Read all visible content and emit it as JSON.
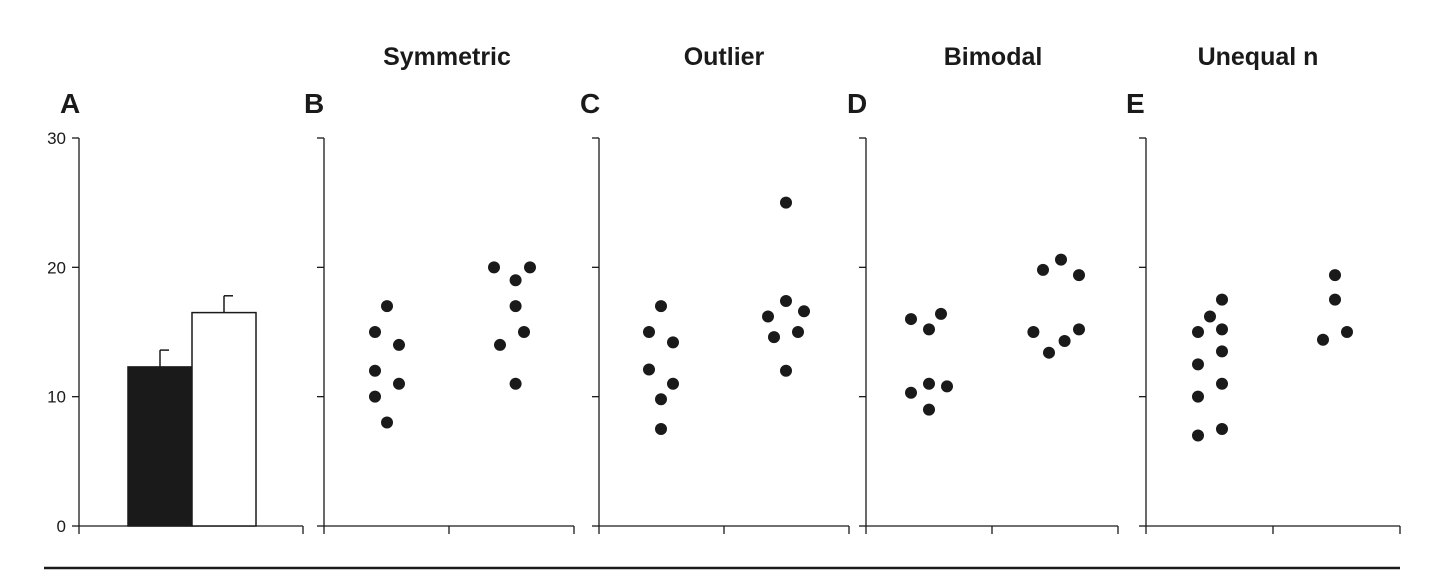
{
  "colors": {
    "ink": "#1a1a1a",
    "bar_filled": "#1a1a1a",
    "bar_open": "#ffffff"
  },
  "chart_data": [
    {
      "panel": "A",
      "type": "bar",
      "title": "",
      "ylim": [
        0,
        30
      ],
      "yticks": [
        "0",
        "10",
        "20",
        "30"
      ],
      "bars": [
        {
          "value": 12.3,
          "error": 1.3,
          "fill": "#1a1a1a"
        },
        {
          "value": 16.5,
          "error": 1.3,
          "fill": "#ffffff"
        }
      ]
    },
    {
      "panel": "B",
      "type": "scatter",
      "title": "Symmetric",
      "ylim": [
        0,
        30
      ],
      "groups": [
        {
          "points": [
            [
              0,
              17
            ],
            [
              -1,
              15
            ],
            [
              1,
              14
            ],
            [
              -1,
              12
            ],
            [
              1,
              11
            ],
            [
              -1,
              10
            ],
            [
              0,
              8
            ]
          ]
        },
        {
          "points": [
            [
              -1.5,
              20
            ],
            [
              1.5,
              20
            ],
            [
              0.3,
              19
            ],
            [
              0.3,
              17
            ],
            [
              1,
              15
            ],
            [
              -1,
              14
            ],
            [
              0.3,
              11
            ]
          ]
        }
      ]
    },
    {
      "panel": "C",
      "type": "scatter",
      "title": "Outlier",
      "ylim": [
        0,
        30
      ],
      "groups": [
        {
          "points": [
            [
              0,
              17
            ],
            [
              -1,
              15
            ],
            [
              1,
              14.2
            ],
            [
              -1,
              12.1
            ],
            [
              1,
              11
            ],
            [
              0,
              9.8
            ],
            [
              0,
              7.5
            ]
          ]
        },
        {
          "points": [
            [
              0,
              25
            ],
            [
              0,
              17.4
            ],
            [
              -1.5,
              16.2
            ],
            [
              1.5,
              16.6
            ],
            [
              -1,
              14.6
            ],
            [
              1,
              15
            ],
            [
              0,
              12
            ]
          ]
        }
      ]
    },
    {
      "panel": "D",
      "type": "scatter",
      "title": "Bimodal",
      "ylim": [
        0,
        30
      ],
      "groups": [
        {
          "points": [
            [
              -1.5,
              16
            ],
            [
              0,
              15.2
            ],
            [
              1,
              16.4
            ],
            [
              -1.5,
              10.3
            ],
            [
              0,
              11
            ],
            [
              1.5,
              10.8
            ],
            [
              0,
              9
            ]
          ]
        },
        {
          "points": [
            [
              -1,
              19.8
            ],
            [
              0.5,
              20.6
            ],
            [
              2,
              19.4
            ],
            [
              -1.8,
              15
            ],
            [
              2,
              15.2
            ],
            [
              -0.5,
              13.4
            ],
            [
              0.8,
              14.3
            ]
          ]
        }
      ]
    },
    {
      "panel": "E",
      "type": "scatter",
      "title": "Unequal n",
      "ylim": [
        0,
        30
      ],
      "groups": [
        {
          "points": [
            [
              1,
              17.5
            ],
            [
              0,
              16.2
            ],
            [
              -1,
              15
            ],
            [
              1,
              15.2
            ],
            [
              -1,
              12.5
            ],
            [
              1,
              13.5
            ],
            [
              1,
              11
            ],
            [
              -1,
              10
            ],
            [
              -1,
              7
            ],
            [
              1,
              7.5
            ]
          ]
        },
        {
          "points": [
            [
              0,
              19.4
            ],
            [
              0,
              17.5
            ],
            [
              -1,
              14.4
            ],
            [
              1,
              15
            ]
          ]
        }
      ]
    }
  ]
}
